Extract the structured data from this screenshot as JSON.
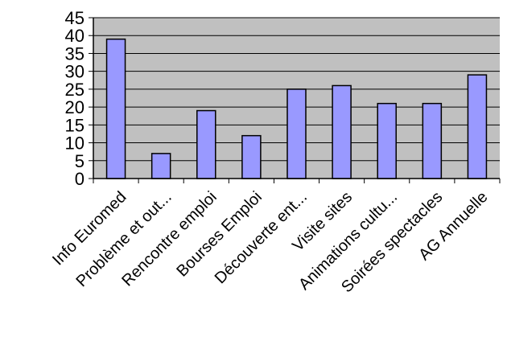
{
  "chart_data": {
    "type": "bar",
    "title": "",
    "xlabel": "",
    "ylabel": "",
    "categories": [
      "Info Euromed",
      "Problème et out...",
      "Rencontre emploi",
      "Bourses Emploi",
      "Découverte ent...",
      "Visite sites",
      "Animations cultu...",
      "Soirées spectacles",
      "AG Annuelle"
    ],
    "values": [
      39,
      7,
      19,
      12,
      25,
      26,
      21,
      21,
      29
    ],
    "ylim": [
      0,
      45
    ],
    "yticks": [
      "0",
      "5",
      "10",
      "15",
      "20",
      "25",
      "30",
      "35",
      "40",
      "45"
    ],
    "grid": true,
    "legend": "none",
    "colors": {
      "plot_background": "#c0c0c0",
      "bar_fill": "#9999ff",
      "bar_stroke": "#000000",
      "gridline": "#000000"
    }
  }
}
